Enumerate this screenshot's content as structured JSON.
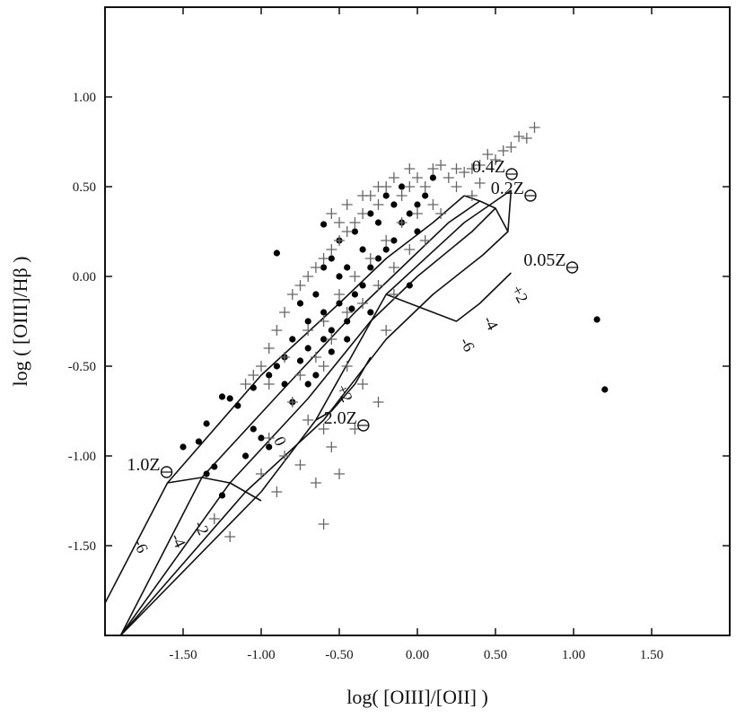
{
  "chart_data": {
    "type": "scatter",
    "title": "",
    "xlabel": "log( [OIII]/[OII] )",
    "ylabel": "log ( [OIII]/Hβ )",
    "xlim": [
      -2.0,
      2.0
    ],
    "ylim": [
      -2.0,
      1.5
    ],
    "x_ticks": [
      "-1.50",
      "-1.00",
      "-0.50",
      "0.00",
      "0.50",
      "1.00",
      "1.50"
    ],
    "y_ticks": [
      "1.00",
      "0.50",
      "0.00",
      "-0.50",
      "-1.00",
      "-1.50"
    ],
    "grid": false,
    "colors": {
      "ink": "#111111",
      "plus": "#666666",
      "dot": "#000000"
    },
    "series": [
      {
        "marker": "dot",
        "points": [
          [
            -0.9,
            0.13
          ],
          [
            -0.6,
            0.29
          ],
          [
            0.1,
            0.55
          ],
          [
            1.15,
            -0.24
          ],
          [
            1.2,
            -0.63
          ],
          [
            -0.05,
            -0.05
          ],
          [
            -1.35,
            -0.82
          ],
          [
            -1.4,
            -0.92
          ],
          [
            -1.5,
            -0.95
          ],
          [
            -1.3,
            -1.06
          ],
          [
            -1.35,
            -1.1
          ],
          [
            -1.25,
            -1.22
          ],
          [
            -1.25,
            -0.67
          ],
          [
            -1.2,
            -0.68
          ],
          [
            -1.15,
            -0.72
          ],
          [
            -1.05,
            -0.62
          ],
          [
            -0.95,
            -0.55
          ],
          [
            -1.05,
            -0.85
          ],
          [
            -1.0,
            -0.9
          ],
          [
            -0.95,
            -0.95
          ],
          [
            -1.1,
            -1.0
          ],
          [
            -0.8,
            -0.7
          ],
          [
            -0.75,
            -0.47
          ],
          [
            -0.85,
            -0.45
          ],
          [
            -0.7,
            -0.4
          ],
          [
            -0.7,
            -0.6
          ],
          [
            -0.65,
            -0.55
          ],
          [
            -0.6,
            -0.35
          ],
          [
            -0.55,
            -0.3
          ],
          [
            -0.6,
            -0.2
          ],
          [
            -0.5,
            -0.15
          ],
          [
            -0.45,
            -0.25
          ],
          [
            -0.4,
            -0.1
          ],
          [
            -0.35,
            -0.05
          ],
          [
            -0.3,
            0.05
          ],
          [
            -0.25,
            0.1
          ],
          [
            -0.2,
            0.15
          ],
          [
            -0.15,
            0.2
          ],
          [
            -0.1,
            0.3
          ],
          [
            -0.05,
            0.35
          ],
          [
            0.0,
            0.4
          ],
          [
            0.05,
            0.45
          ],
          [
            -0.55,
            0.1
          ],
          [
            -0.5,
            0.2
          ],
          [
            -0.45,
            0.05
          ],
          [
            -0.4,
            0.25
          ],
          [
            -0.3,
            0.35
          ],
          [
            -0.2,
            0.45
          ],
          [
            -0.1,
            0.5
          ],
          [
            -0.65,
            -0.1
          ],
          [
            -0.7,
            -0.25
          ],
          [
            -0.8,
            -0.35
          ],
          [
            -0.9,
            -0.5
          ],
          [
            -0.5,
            0.0
          ],
          [
            -0.35,
            0.15
          ],
          [
            -0.25,
            0.3
          ],
          [
            -0.15,
            0.4
          ],
          [
            0.0,
            0.25
          ],
          [
            -0.75,
            -0.15
          ],
          [
            -0.6,
            0.05
          ],
          [
            -0.42,
            -0.18
          ],
          [
            -0.85,
            -0.6
          ],
          [
            -0.55,
            -0.42
          ],
          [
            -0.45,
            -0.35
          ],
          [
            -0.3,
            -0.2
          ]
        ]
      },
      {
        "marker": "plus",
        "points": [
          [
            0.75,
            0.83
          ],
          [
            0.65,
            0.78
          ],
          [
            0.6,
            0.72
          ],
          [
            0.7,
            0.77
          ],
          [
            0.55,
            0.7
          ],
          [
            0.5,
            0.65
          ],
          [
            0.45,
            0.68
          ],
          [
            0.4,
            0.62
          ],
          [
            0.35,
            0.6
          ],
          [
            0.3,
            0.58
          ],
          [
            0.25,
            0.6
          ],
          [
            0.2,
            0.55
          ],
          [
            0.15,
            0.62
          ],
          [
            0.1,
            0.6
          ],
          [
            0.05,
            0.5
          ],
          [
            0.0,
            0.55
          ],
          [
            -0.05,
            0.5
          ],
          [
            -0.1,
            0.45
          ],
          [
            -0.15,
            0.55
          ],
          [
            -0.2,
            0.5
          ],
          [
            -0.25,
            0.4
          ],
          [
            -0.3,
            0.45
          ],
          [
            -0.35,
            0.35
          ],
          [
            -0.4,
            0.3
          ],
          [
            -0.45,
            0.25
          ],
          [
            -0.5,
            0.2
          ],
          [
            -0.55,
            0.15
          ],
          [
            -0.6,
            0.1
          ],
          [
            -0.65,
            0.05
          ],
          [
            -0.7,
            0.0
          ],
          [
            -0.75,
            -0.05
          ],
          [
            -0.8,
            -0.1
          ],
          [
            -0.85,
            -0.2
          ],
          [
            -0.9,
            -0.3
          ],
          [
            -0.95,
            -0.4
          ],
          [
            -1.0,
            -0.5
          ],
          [
            -1.05,
            -0.55
          ],
          [
            -1.1,
            -0.6
          ],
          [
            -0.95,
            -0.6
          ],
          [
            -0.85,
            -0.45
          ],
          [
            -0.7,
            -0.3
          ],
          [
            -0.6,
            -0.25
          ],
          [
            -0.5,
            -0.1
          ],
          [
            -0.4,
            0.0
          ],
          [
            -0.3,
            0.1
          ],
          [
            -0.2,
            0.2
          ],
          [
            -0.1,
            0.3
          ],
          [
            0.0,
            0.35
          ],
          [
            0.1,
            0.4
          ],
          [
            -0.65,
            -0.45
          ],
          [
            -0.55,
            -0.35
          ],
          [
            -0.45,
            -0.2
          ],
          [
            -0.35,
            -0.15
          ],
          [
            -0.25,
            -0.05
          ],
          [
            -0.15,
            0.05
          ],
          [
            -0.05,
            0.15
          ],
          [
            -0.75,
            -0.55
          ],
          [
            -0.6,
            -0.5
          ],
          [
            -0.45,
            -0.5
          ],
          [
            -0.8,
            -0.7
          ],
          [
            -0.7,
            -0.8
          ],
          [
            -0.6,
            -0.85
          ],
          [
            -0.55,
            -0.95
          ],
          [
            -0.5,
            -1.1
          ],
          [
            -0.65,
            -1.15
          ],
          [
            -0.75,
            -1.05
          ],
          [
            -0.85,
            -1.0
          ],
          [
            -0.95,
            -0.9
          ],
          [
            -0.6,
            -1.38
          ],
          [
            -1.2,
            -1.45
          ],
          [
            -0.2,
            -0.3
          ],
          [
            -0.15,
            -0.1
          ],
          [
            0.05,
            0.2
          ],
          [
            0.15,
            0.35
          ],
          [
            -1.0,
            -1.1
          ],
          [
            -0.35,
            -0.6
          ],
          [
            -0.25,
            -0.7
          ],
          [
            -0.4,
            -0.85
          ],
          [
            -0.55,
            0.35
          ],
          [
            -0.5,
            0.3
          ],
          [
            -0.45,
            0.4
          ],
          [
            -0.35,
            0.45
          ],
          [
            -0.25,
            0.5
          ],
          [
            -0.05,
            0.6
          ],
          [
            0.25,
            0.5
          ],
          [
            0.35,
            0.45
          ],
          [
            0.4,
            0.52
          ],
          [
            -1.3,
            -1.35
          ],
          [
            -0.9,
            -1.2
          ]
        ]
      }
    ],
    "grid_lines": [
      {
        "points": [
          [
            -2.0,
            -1.82
          ],
          [
            -1.6,
            -1.15
          ],
          [
            -1.0,
            -0.55
          ],
          [
            -0.5,
            -0.15
          ],
          [
            -0.2,
            0.1
          ],
          [
            0.1,
            0.3
          ],
          [
            0.3,
            0.45
          ]
        ]
      },
      {
        "points": [
          [
            -1.9,
            -2.0
          ],
          [
            -1.38,
            -1.12
          ],
          [
            -0.85,
            -0.62
          ],
          [
            -0.4,
            -0.2
          ],
          [
            -0.1,
            0.05
          ],
          [
            0.2,
            0.3
          ],
          [
            0.4,
            0.42
          ]
        ]
      },
      {
        "points": [
          [
            -1.9,
            -2.0
          ],
          [
            -1.2,
            -1.15
          ],
          [
            -0.7,
            -0.68
          ],
          [
            -0.3,
            -0.25
          ],
          [
            0.0,
            0.0
          ],
          [
            0.35,
            0.25
          ],
          [
            0.5,
            0.38
          ]
        ]
      },
      {
        "points": [
          [
            -1.9,
            -2.0
          ],
          [
            -1.1,
            -1.2
          ],
          [
            -0.6,
            -0.8
          ],
          [
            -0.2,
            -0.35
          ],
          [
            0.1,
            -0.1
          ],
          [
            0.42,
            0.12
          ],
          [
            0.58,
            0.25
          ]
        ]
      },
      {
        "points": [
          [
            -1.9,
            -2.0
          ],
          [
            -1.0,
            -1.2
          ],
          [
            -0.65,
            -0.8
          ],
          [
            -0.2,
            -0.1
          ],
          [
            0.3,
            0.3
          ],
          [
            0.6,
            0.48
          ]
        ]
      },
      {
        "points": [
          [
            -1.6,
            -1.15
          ],
          [
            -1.38,
            -1.12
          ],
          [
            -1.2,
            -1.15
          ],
          [
            -1.1,
            -1.2
          ],
          [
            -1.0,
            -1.25
          ]
        ]
      },
      {
        "points": [
          [
            -0.65,
            -0.8
          ],
          [
            -0.55,
            -0.75
          ],
          [
            -0.4,
            -0.6
          ],
          [
            -0.3,
            -0.45
          ]
        ]
      },
      {
        "points": [
          [
            -0.2,
            -0.1
          ],
          [
            0.25,
            -0.25
          ],
          [
            0.4,
            -0.15
          ],
          [
            0.6,
            0.02
          ]
        ]
      },
      {
        "points": [
          [
            0.3,
            0.45
          ],
          [
            0.4,
            0.42
          ],
          [
            0.5,
            0.38
          ],
          [
            0.58,
            0.25
          ],
          [
            0.6,
            0.48
          ]
        ]
      }
    ],
    "annotations": [
      {
        "text": "1.0Z",
        "x": -1.86,
        "y": -1.08
      },
      {
        "text": "2.0Z",
        "x": -0.6,
        "y": -0.82
      },
      {
        "text": "0.4Z",
        "x": 0.35,
        "y": 0.58
      },
      {
        "text": "0.2Z",
        "x": 0.47,
        "y": 0.46
      },
      {
        "text": "0.05Z",
        "x": 0.68,
        "y": 0.06
      }
    ],
    "curve_labels": [
      {
        "text": "-6",
        "x": -1.82,
        "y": -1.48,
        "angle": 65
      },
      {
        "text": "-4",
        "x": -1.58,
        "y": -1.45,
        "angle": 65
      },
      {
        "text": "-2",
        "x": -1.43,
        "y": -1.38,
        "angle": 65
      },
      {
        "text": "+2",
        "x": -0.52,
        "y": -0.62,
        "angle": 65
      },
      {
        "text": "0",
        "x": -0.92,
        "y": -0.91,
        "angle": 65
      },
      {
        "text": "-6",
        "x": 0.27,
        "y": -0.36,
        "angle": 62
      },
      {
        "text": "-4",
        "x": 0.42,
        "y": -0.24,
        "angle": 62
      },
      {
        "text": "+2",
        "x": 0.6,
        "y": -0.07,
        "angle": 62
      }
    ]
  }
}
